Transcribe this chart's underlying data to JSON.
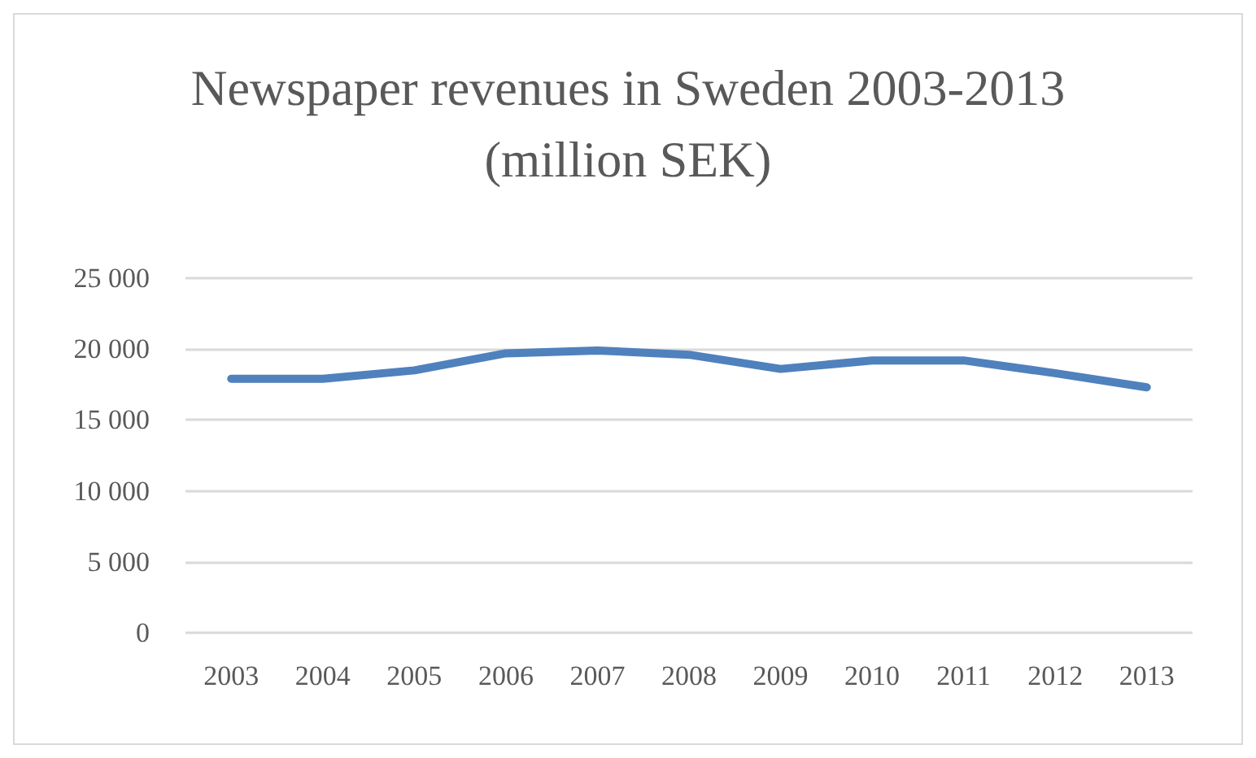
{
  "chart_data": {
    "type": "line",
    "title": "Newspaper revenues in Sweden 2003-2013\n(million SEK)",
    "categories": [
      "2003",
      "2004",
      "2005",
      "2006",
      "2007",
      "2008",
      "2009",
      "2010",
      "2011",
      "2012",
      "2013"
    ],
    "series": [
      {
        "color": "#4f81bd",
        "values": [
          17900,
          17900,
          18500,
          19700,
          19900,
          19600,
          18600,
          19200,
          19200,
          18300,
          17300
        ]
      }
    ],
    "ylim": [
      0,
      25000
    ],
    "yticks": [
      {
        "value": 0,
        "label": "0"
      },
      {
        "value": 5000,
        "label": "5 000"
      },
      {
        "value": 10000,
        "label": "10 000"
      },
      {
        "value": 15000,
        "label": "15 000"
      },
      {
        "value": 20000,
        "label": "20 000"
      },
      {
        "value": 25000,
        "label": "25 000"
      }
    ],
    "grid": "y",
    "marker": "none",
    "line_style": "solid"
  }
}
